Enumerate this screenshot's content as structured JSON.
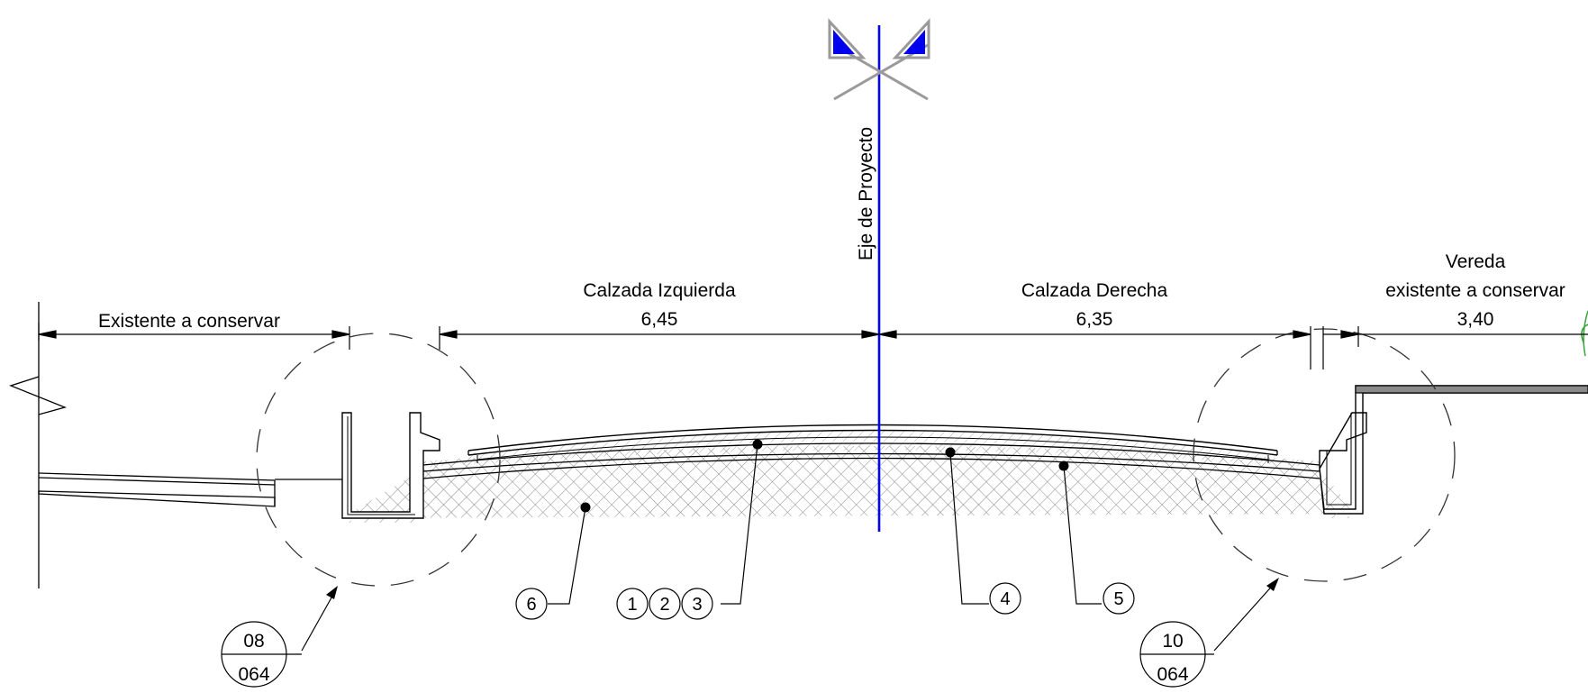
{
  "axis_label": "Eje de Proyecto",
  "dimensions": {
    "left_existing": {
      "label": "Existente a conservar"
    },
    "left_roadway": {
      "label": "Calzada Izquierda",
      "value": "6,45"
    },
    "right_roadway": {
      "label": "Calzada Derecha",
      "value": "6,35"
    },
    "right_sidewalk": {
      "label_line1": "Vereda",
      "label_line2": "existente a conservar",
      "value": "3,40"
    }
  },
  "callouts": [
    "1",
    "2",
    "3",
    "4",
    "5",
    "6"
  ],
  "detail_refs": [
    {
      "top": "08",
      "bottom": "064"
    },
    {
      "top": "10",
      "bottom": "064"
    }
  ],
  "colors": {
    "axis": "#0000ff",
    "line": "#000000",
    "dash": "#333333",
    "hatch": "#888888",
    "symbol_gray": "#9a9a9a",
    "symbol_blue": "#0000ee",
    "sidewalk_fill": "#8a8a8a"
  }
}
